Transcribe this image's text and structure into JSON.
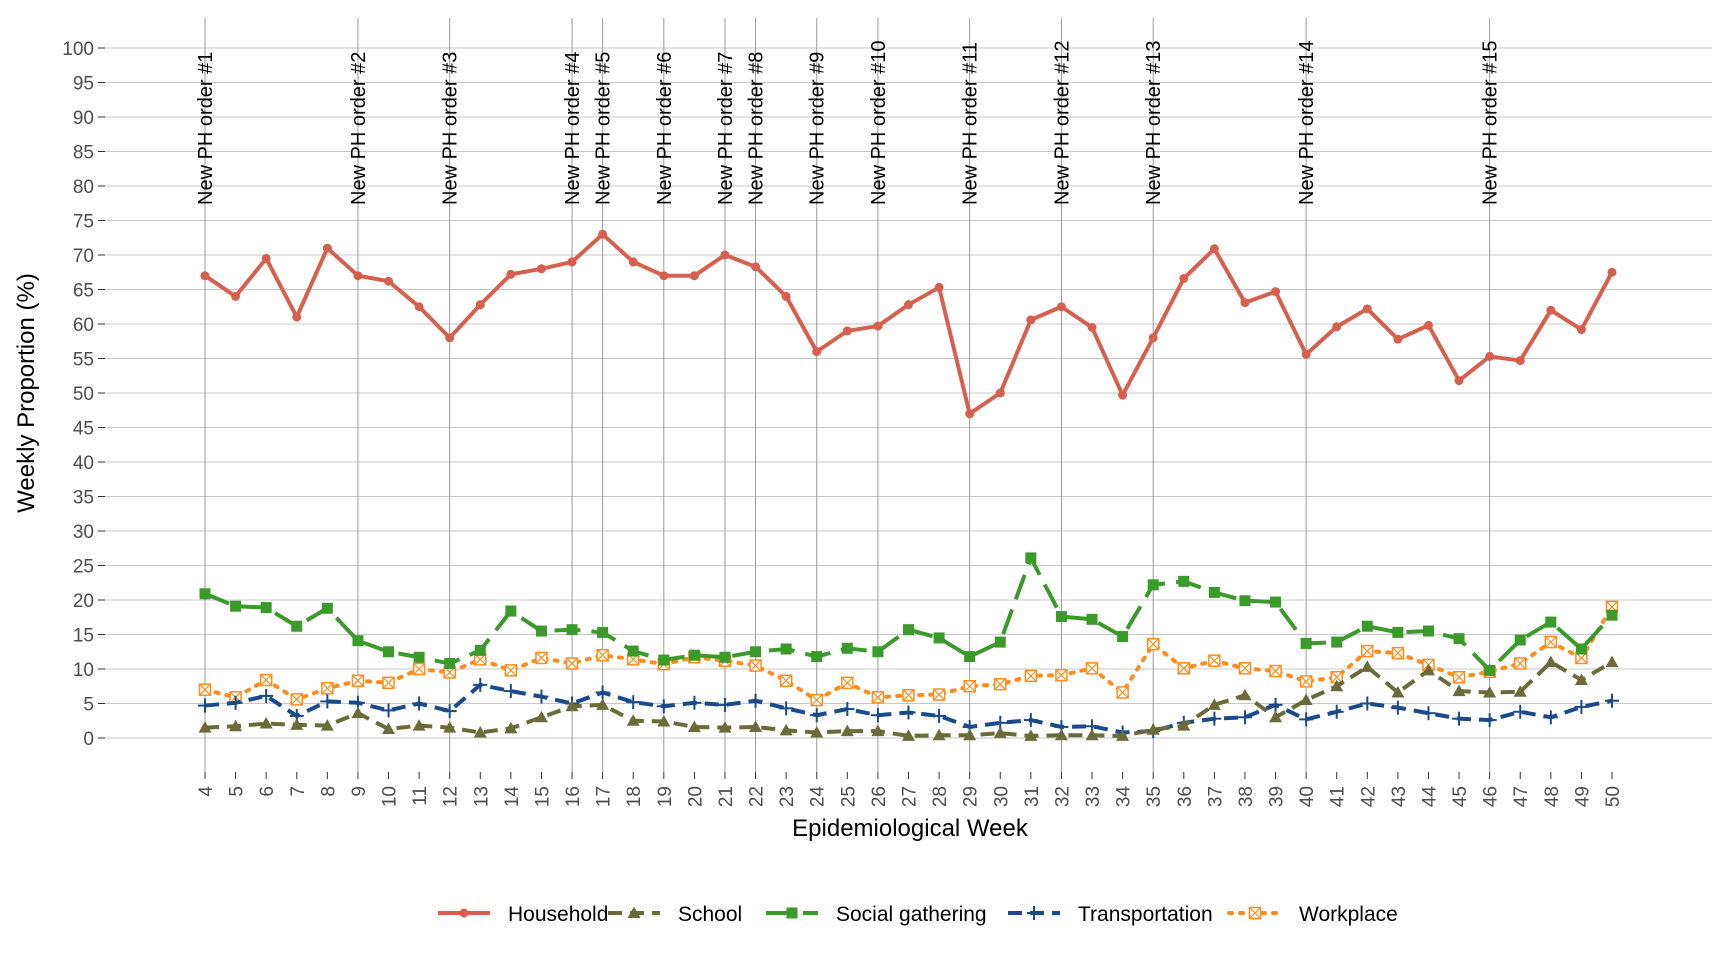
{
  "chart_data": {
    "type": "line",
    "title": "",
    "xlabel": "Epidemiological Week",
    "ylabel": "Weekly Proportion (%)",
    "x": [
      4,
      5,
      6,
      7,
      8,
      9,
      10,
      11,
      12,
      13,
      14,
      15,
      16,
      17,
      18,
      19,
      20,
      21,
      22,
      23,
      24,
      25,
      26,
      27,
      28,
      29,
      30,
      31,
      32,
      33,
      34,
      35,
      36,
      37,
      38,
      39,
      40,
      41,
      42,
      43,
      44,
      45,
      46,
      47,
      48,
      49,
      50
    ],
    "xlim": [
      4,
      50
    ],
    "ylim": [
      0,
      100
    ],
    "yticks": [
      0,
      5,
      10,
      15,
      20,
      25,
      30,
      35,
      40,
      45,
      50,
      55,
      60,
      65,
      70,
      75,
      80,
      85,
      90,
      95,
      100
    ],
    "grid": true,
    "legend_position": "bottom",
    "series": [
      {
        "name": "Household",
        "color": "#d6604d",
        "dash": "solid",
        "marker": "circle",
        "values": [
          67,
          64,
          69.5,
          61,
          71,
          67,
          66.2,
          62.5,
          58,
          62.8,
          67.2,
          68,
          69,
          73,
          69,
          67,
          67,
          70,
          68.3,
          64,
          56,
          59,
          59.7,
          62.8,
          65.3,
          47,
          50,
          60.6,
          62.5,
          59.5,
          49.7,
          58,
          66.6,
          70.9,
          63.1,
          64.7,
          55.6,
          59.6,
          62.2,
          57.8,
          59.8,
          51.8,
          55.3,
          54.7,
          62,
          59.2,
          67.5
        ]
      },
      {
        "name": "School",
        "color": "#6b6b3a",
        "dash": "dashed",
        "marker": "triangle",
        "values": [
          1.5,
          1.7,
          2.1,
          1.9,
          1.8,
          3.6,
          1.3,
          1.8,
          1.5,
          0.8,
          1.4,
          3,
          4.6,
          4.8,
          2.5,
          2.4,
          1.6,
          1.5,
          1.6,
          1.1,
          0.8,
          1,
          1,
          0.3,
          0.4,
          0.4,
          0.7,
          0.3,
          0.4,
          0.4,
          0.3,
          1.2,
          1.8,
          4.8,
          6.2,
          3,
          5.5,
          7.5,
          10.3,
          6.6,
          9.8,
          6.8,
          6.6,
          6.7,
          11,
          8.4,
          11
        ]
      },
      {
        "name": "Social gathering",
        "color": "#3a9a2a",
        "dash": "longdash",
        "marker": "square",
        "values": [
          20.9,
          19.1,
          18.9,
          16.2,
          18.8,
          14.1,
          12.5,
          11.7,
          10.8,
          12.7,
          18.4,
          15.5,
          15.7,
          15.3,
          12.6,
          11.3,
          12,
          11.7,
          12.5,
          12.9,
          11.8,
          13,
          12.5,
          15.7,
          14.5,
          11.8,
          13.9,
          26.1,
          17.6,
          17.2,
          14.7,
          22.2,
          22.7,
          21.1,
          19.9,
          19.7,
          13.7,
          13.9,
          16.2,
          15.3,
          15.5,
          14.4,
          9.8,
          14.2,
          16.8,
          12.9,
          17.8
        ]
      },
      {
        "name": "Transportation",
        "color": "#1a4a8a",
        "dash": "dashed",
        "marker": "plus",
        "values": [
          4.7,
          5.1,
          6.1,
          3.2,
          5.3,
          5.1,
          4,
          5,
          3.9,
          7.7,
          6.8,
          6,
          5,
          6.6,
          5.2,
          4.6,
          5.1,
          4.8,
          5.4,
          4.3,
          3.3,
          4.2,
          3.3,
          3.7,
          3.2,
          1.6,
          2.2,
          2.6,
          1.6,
          1.7,
          0.8,
          1,
          2.2,
          2.8,
          3,
          4.8,
          2.7,
          3.8,
          5,
          4.4,
          3.6,
          2.8,
          2.6,
          3.8,
          3,
          4.5,
          5.4
        ]
      },
      {
        "name": "Workplace",
        "color": "#ff8c1a",
        "dash": "dotted",
        "marker": "boxx",
        "values": [
          7,
          5.9,
          8.4,
          5.6,
          7.2,
          8.3,
          8,
          10,
          9.5,
          11.4,
          9.8,
          11.6,
          10.8,
          12,
          11.4,
          10.7,
          11.7,
          11.2,
          10.5,
          8.3,
          5.5,
          8,
          5.9,
          6.2,
          6.3,
          7.5,
          7.8,
          9,
          9.1,
          10.1,
          6.6,
          13.6,
          10.1,
          11.2,
          10.1,
          9.7,
          8.2,
          8.8,
          12.6,
          12.3,
          10.6,
          8.8,
          9.6,
          10.8,
          13.9,
          11.6,
          19
        ]
      }
    ],
    "annotations": [
      {
        "label": "New PH order #1",
        "week": 4
      },
      {
        "label": "New PH order #2",
        "week": 9
      },
      {
        "label": "New PH order #3",
        "week": 12
      },
      {
        "label": "New PH order #4",
        "week": 16
      },
      {
        "label": "New PH order #5",
        "week": 17
      },
      {
        "label": "New PH order #6",
        "week": 19
      },
      {
        "label": "New PH order #7",
        "week": 21
      },
      {
        "label": "New PH order #8",
        "week": 22
      },
      {
        "label": "New PH order #9",
        "week": 24
      },
      {
        "label": "New PH order #10",
        "week": 26
      },
      {
        "label": "New PH order #11",
        "week": 29
      },
      {
        "label": "New PH order #12",
        "week": 32
      },
      {
        "label": "New PH order #13",
        "week": 35
      },
      {
        "label": "New PH order #14",
        "week": 40
      },
      {
        "label": "New PH order #15",
        "week": 46
      }
    ]
  }
}
